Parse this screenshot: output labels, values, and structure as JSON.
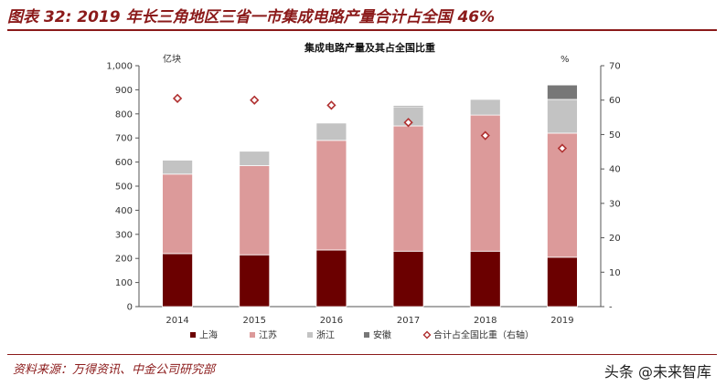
{
  "figure": {
    "title": "图表 32: 2019 年长三角地区三省一市集成电路产量合计占全国 46%",
    "source": "资料来源：万得资讯、中金公司研究部",
    "watermark": "头条 @未来智库"
  },
  "colors": {
    "accent": "#8b1a1a",
    "shanghai": "#6b0000",
    "jiangsu": "#dc9a9a",
    "zhejiang": "#c3c3c3",
    "anhui": "#777777",
    "marker_stroke": "#b03030"
  },
  "chart_data": {
    "type": "bar",
    "stacked": true,
    "title": "集成电路产量及其占全国比重",
    "y_unit_left": "亿块",
    "y_unit_right": "%",
    "categories": [
      "2014",
      "2015",
      "2016",
      "2017",
      "2018",
      "2019"
    ],
    "ylim": [
      0,
      1000
    ],
    "yticks": [
      0,
      100,
      200,
      300,
      400,
      500,
      600,
      700,
      800,
      900,
      1000
    ],
    "ytick_labels": [
      "0",
      "100",
      "200",
      "300",
      "400",
      "500",
      "600",
      "700",
      "800",
      "900",
      "1,000"
    ],
    "y2lim": [
      0,
      70
    ],
    "y2ticks": [
      0,
      10,
      20,
      30,
      40,
      50,
      60,
      70
    ],
    "y2tick_labels": [
      "-",
      "10",
      "20",
      "30",
      "40",
      "50",
      "60",
      "70"
    ],
    "series": [
      {
        "name": "上海",
        "values": [
          220,
          215,
          235,
          230,
          230,
          205
        ]
      },
      {
        "name": "江苏",
        "values": [
          330,
          370,
          455,
          520,
          565,
          515
        ]
      },
      {
        "name": "浙江",
        "values": [
          58,
          60,
          72,
          80,
          65,
          140
        ]
      },
      {
        "name": "安徽",
        "values": [
          0,
          0,
          0,
          5,
          0,
          60
        ]
      }
    ],
    "line_series": {
      "name": "合计占全国比重（右轴）",
      "axis": "right",
      "marker": "diamond",
      "values": [
        60.5,
        60.0,
        58.5,
        53.5,
        49.7,
        46.0
      ]
    },
    "legend_position": "bottom",
    "grid": false
  }
}
